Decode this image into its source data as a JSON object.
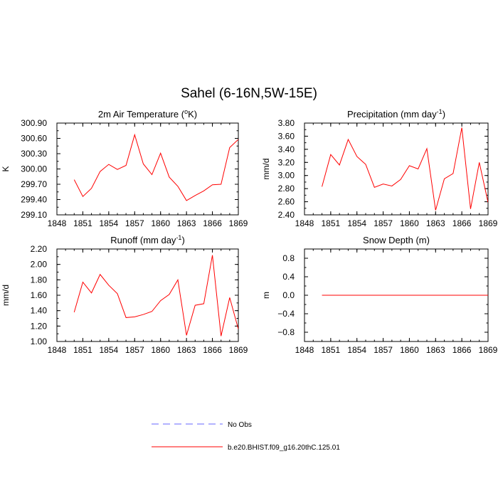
{
  "title": "Sahel (6-16N,5W-15E)",
  "legend": {
    "entries": [
      {
        "label": "No Obs",
        "color": "#6666ff",
        "dash": true
      },
      {
        "label": "b.e20.BHIST.f09_g16.20thC.125.01",
        "color": "#ff0000",
        "dash": false
      }
    ]
  },
  "chart_data": [
    {
      "type": "line",
      "title": "2m Air Temperature (°K)",
      "title_main": "2m Air Temperature (",
      "title_sup": "o",
      "title_tail": "K)",
      "ylabel": "K",
      "xlim": [
        1848,
        1869
      ],
      "ylim": [
        299.1,
        300.9
      ],
      "xticks": [
        "1848",
        "1851",
        "1854",
        "1857",
        "1860",
        "1863",
        "1866",
        "1869"
      ],
      "yticks": [
        "299.10",
        "299.40",
        "299.70",
        "300.00",
        "300.30",
        "300.60",
        "300.90"
      ],
      "grid": false,
      "series": [
        {
          "color": "#ff0000",
          "x": [
            1850,
            1851,
            1852,
            1853,
            1854,
            1855,
            1856,
            1857,
            1858,
            1859,
            1860,
            1861,
            1862,
            1863,
            1864,
            1865,
            1866,
            1867,
            1868,
            1869
          ],
          "y": [
            299.79,
            299.46,
            299.62,
            299.95,
            300.09,
            299.99,
            300.07,
            300.67,
            300.1,
            299.89,
            300.31,
            299.84,
            299.66,
            299.38,
            299.48,
            299.57,
            299.69,
            299.7,
            300.42,
            300.58
          ]
        }
      ]
    },
    {
      "type": "line",
      "title": "Precipitation (mm day-1)",
      "title_main": "Precipitation (mm day",
      "title_sup": "-1",
      "title_tail": ")",
      "ylabel": "mm/d",
      "xlim": [
        1848,
        1869
      ],
      "ylim": [
        2.4,
        3.8
      ],
      "xticks": [
        "1848",
        "1851",
        "1854",
        "1857",
        "1860",
        "1863",
        "1866",
        "1869"
      ],
      "yticks": [
        "2.40",
        "2.60",
        "2.80",
        "3.00",
        "3.20",
        "3.40",
        "3.60",
        "3.80"
      ],
      "grid": false,
      "series": [
        {
          "color": "#ff0000",
          "x": [
            1850,
            1851,
            1852,
            1853,
            1854,
            1855,
            1856,
            1857,
            1858,
            1859,
            1860,
            1861,
            1862,
            1863,
            1864,
            1865,
            1866,
            1867,
            1868,
            1869
          ],
          "y": [
            2.83,
            3.32,
            3.16,
            3.55,
            3.29,
            3.17,
            2.82,
            2.87,
            2.84,
            2.94,
            3.15,
            3.1,
            3.41,
            2.47,
            2.95,
            3.03,
            3.73,
            2.49,
            3.2,
            2.59
          ]
        }
      ]
    },
    {
      "type": "line",
      "title": "Runoff (mm day-1)",
      "title_main": "Runoff (mm day",
      "title_sup": "-1",
      "title_tail": ")",
      "ylabel": "mm/d",
      "xlim": [
        1848,
        1869
      ],
      "ylim": [
        1.0,
        2.2
      ],
      "xticks": [
        "1848",
        "1851",
        "1854",
        "1857",
        "1860",
        "1863",
        "1866",
        "1869"
      ],
      "yticks": [
        "1.00",
        "1.20",
        "1.40",
        "1.60",
        "1.80",
        "2.00",
        "2.20"
      ],
      "grid": false,
      "series": [
        {
          "color": "#ff0000",
          "x": [
            1850,
            1851,
            1852,
            1853,
            1854,
            1855,
            1856,
            1857,
            1858,
            1859,
            1860,
            1861,
            1862,
            1863,
            1864,
            1865,
            1866,
            1867,
            1868,
            1869
          ],
          "y": [
            1.38,
            1.77,
            1.63,
            1.87,
            1.73,
            1.62,
            1.31,
            1.32,
            1.35,
            1.39,
            1.53,
            1.61,
            1.8,
            1.08,
            1.47,
            1.49,
            2.12,
            1.07,
            1.57,
            1.16
          ]
        }
      ]
    },
    {
      "type": "line",
      "title": "Snow Depth (m)",
      "title_main": "Snow Depth (m)",
      "title_sup": "",
      "title_tail": "",
      "ylabel": "m",
      "xlim": [
        1848,
        1869
      ],
      "ylim": [
        -1.0,
        1.0
      ],
      "xticks": [
        "1848",
        "1851",
        "1854",
        "1857",
        "1860",
        "1863",
        "1866",
        "1869"
      ],
      "yticks": [
        "−0.8",
        "−0.4",
        "0.0",
        "0.4",
        "0.8"
      ],
      "grid": false,
      "series": [
        {
          "color": "#ff0000",
          "x": [
            1850,
            1851,
            1852,
            1853,
            1854,
            1855,
            1856,
            1857,
            1858,
            1859,
            1860,
            1861,
            1862,
            1863,
            1864,
            1865,
            1866,
            1867,
            1868,
            1869
          ],
          "y": [
            0,
            0,
            0,
            0,
            0,
            0,
            0,
            0,
            0,
            0,
            0,
            0,
            0,
            0,
            0,
            0,
            0,
            0,
            0,
            0
          ]
        }
      ]
    }
  ]
}
